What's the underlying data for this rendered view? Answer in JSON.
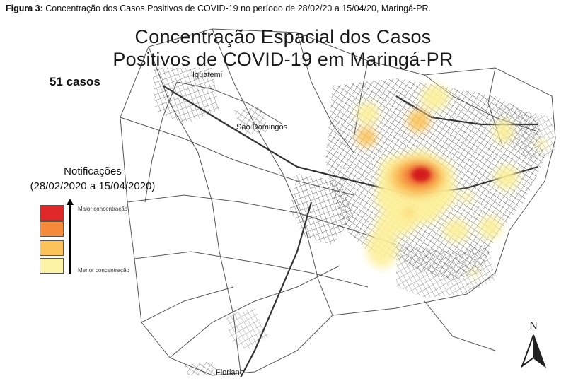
{
  "caption": {
    "label": "Figura 3:",
    "text": " Concentração dos Casos Positivos de COVID-19 no período de 28/02/20 a 15/04/20, Maringá-PR."
  },
  "map": {
    "title_line1": "Concentração Espacial dos Casos",
    "title_line2": "Positivos de COVID-19 em Maringá-PR",
    "case_count": "51 casos",
    "places": {
      "iguatemi": "Iguatemi",
      "sao_domingos": "São Domingos",
      "floriano": "Floriano"
    },
    "north_label": "N"
  },
  "legend": {
    "title_line1": "Notificações",
    "title_line2": "(28/02/2020 a 15/04/2020)",
    "max_label": "Maior concentração",
    "min_label": "Menor concentração",
    "classes": [
      {
        "color": "#e02828"
      },
      {
        "color": "#f58a3a"
      },
      {
        "color": "#fbc35a"
      },
      {
        "color": "#fdf3a6"
      }
    ]
  }
}
